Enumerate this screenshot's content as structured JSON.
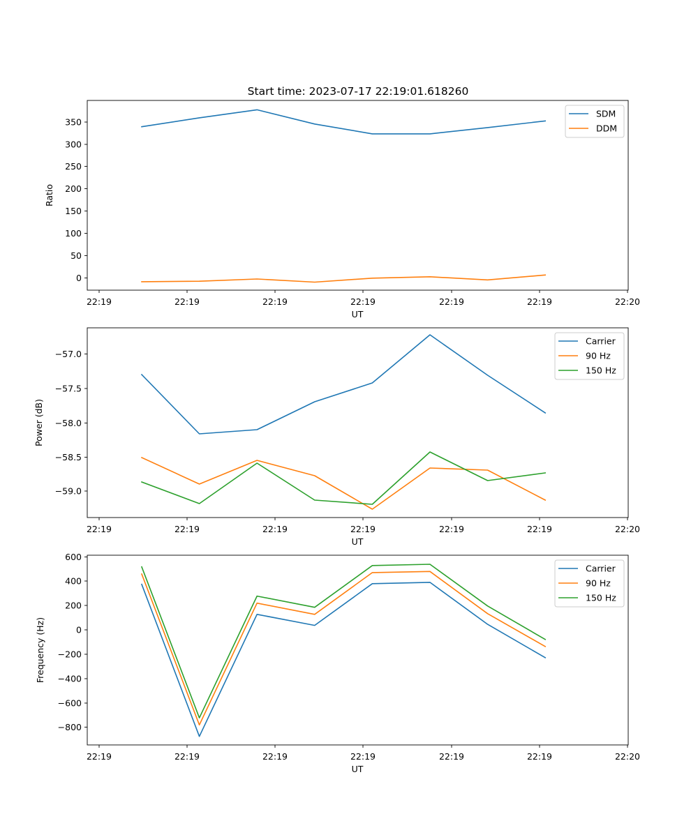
{
  "figure": {
    "title": "Start time: 2023-07-17 22:19:01.618260"
  },
  "colors": {
    "blue": "#1f77b4",
    "orange": "#ff7f0e",
    "green": "#2ca02c"
  },
  "chart_data": [
    {
      "type": "line",
      "title": "Start time: 2023-07-17 22:19:01.618260",
      "xlabel": "UT",
      "ylabel": "Ratio",
      "xticks": [
        "22:19",
        "22:19",
        "22:19",
        "22:19",
        "22:19",
        "22:19",
        "22:20"
      ],
      "yticks": [
        0,
        50,
        100,
        150,
        200,
        250,
        300,
        350
      ],
      "ylim": [
        -26,
        400
      ],
      "legend": "upper right",
      "grid": false,
      "x_points": 8,
      "series": [
        {
          "name": "SDM",
          "color": "#1f77b4",
          "values": [
            341,
            361,
            379,
            347,
            325,
            325,
            339,
            354
          ]
        },
        {
          "name": "DDM",
          "color": "#ff7f0e",
          "values": [
            -7,
            -6,
            -1,
            -8,
            1,
            4,
            -3,
            8
          ]
        }
      ]
    },
    {
      "type": "line",
      "title": "",
      "xlabel": "UT",
      "ylabel": "Power (dB)",
      "xticks": [
        "22:19",
        "22:19",
        "22:19",
        "22:19",
        "22:19",
        "22:19",
        "22:20"
      ],
      "yticks": [
        "−57.0",
        "−57.5",
        "−58.0",
        "−58.5",
        "−59.0"
      ],
      "ylim": [
        -59.38,
        -56.66
      ],
      "legend": "upper right",
      "grid": false,
      "x_points": 8,
      "series": [
        {
          "name": "Carrier",
          "color": "#1f77b4",
          "values": [
            -57.33,
            -58.18,
            -58.12,
            -57.72,
            -57.45,
            -56.76,
            -57.34,
            -57.88
          ]
        },
        {
          "name": "90 Hz",
          "color": "#ff7f0e",
          "values": [
            -58.52,
            -58.9,
            -58.56,
            -58.78,
            -59.26,
            -58.67,
            -58.7,
            -59.13
          ]
        },
        {
          "name": "150 Hz",
          "color": "#2ca02c",
          "values": [
            -58.87,
            -59.18,
            -58.6,
            -59.13,
            -59.19,
            -58.44,
            -58.85,
            -58.74
          ]
        }
      ]
    },
    {
      "type": "line",
      "title": "",
      "xlabel": "UT",
      "ylabel": "Frequency (Hz)",
      "xticks": [
        "22:19",
        "22:19",
        "22:19",
        "22:19",
        "22:19",
        "22:19",
        "22:20"
      ],
      "yticks": [
        "600",
        "400",
        "200",
        "0",
        "−200",
        "−400",
        "−600",
        "−800"
      ],
      "ylim": [
        -950,
        615
      ],
      "legend": "upper right",
      "grid": false,
      "x_points": 8,
      "series": [
        {
          "name": "Carrier",
          "color": "#1f77b4",
          "values": [
            375,
            -880,
            127,
            36,
            380,
            391,
            45,
            -230
          ]
        },
        {
          "name": "90 Hz",
          "color": "#ff7f0e",
          "values": [
            460,
            -785,
            220,
            127,
            472,
            481,
            133,
            -138
          ]
        },
        {
          "name": "150 Hz",
          "color": "#2ca02c",
          "values": [
            519,
            -727,
            278,
            185,
            530,
            540,
            196,
            -80
          ]
        }
      ]
    }
  ]
}
